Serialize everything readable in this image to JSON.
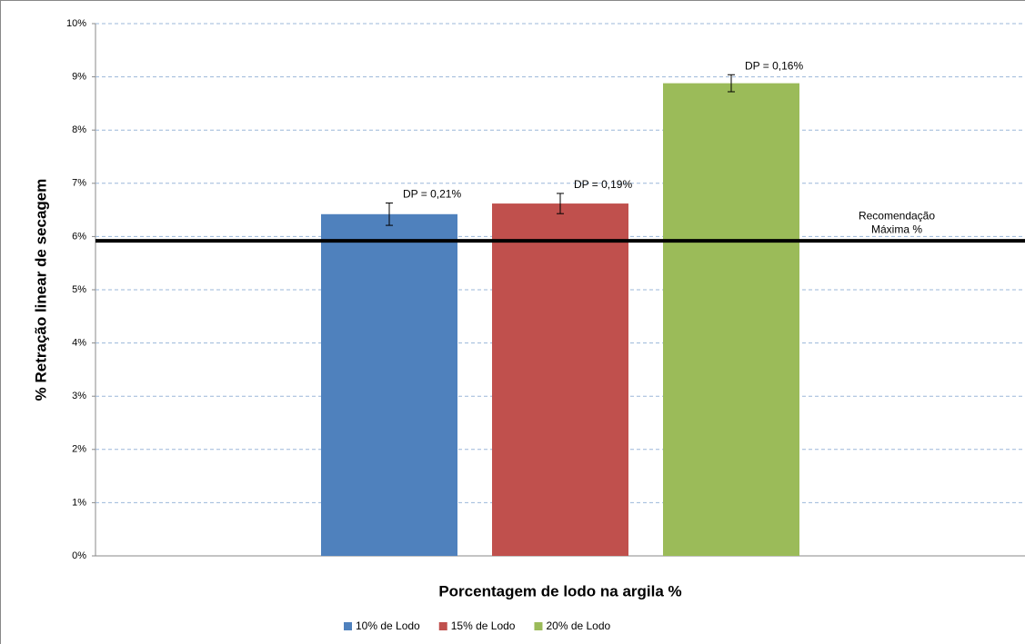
{
  "chart_data": {
    "type": "bar",
    "y_label": "% Retração linear de secagem",
    "x_label": "Porcentagem de lodo na argila %",
    "categories": [
      null
    ],
    "series": [
      {
        "name": "10% de Lodo",
        "color": "#4f81bd",
        "values": [
          6.42
        ],
        "errors": [
          0.21
        ],
        "error_labels": [
          "DP = 0,21%"
        ]
      },
      {
        "name": "15% de Lodo",
        "color": "#c0504d",
        "values": [
          6.62
        ],
        "errors": [
          0.19
        ],
        "error_labels": [
          "DP = 0,19%"
        ]
      },
      {
        "name": "20% de Lodo",
        "color": "#9bbb59",
        "values": [
          8.88
        ],
        "errors": [
          0.16
        ],
        "error_labels": [
          "DP = 0,16%"
        ]
      }
    ],
    "reference_line": {
      "value": 5.92,
      "color": "#000000",
      "label_lines": [
        "Recomendação",
        "Máxima %"
      ]
    },
    "ylim": [
      0,
      10
    ],
    "yticks": [
      {
        "value": 0,
        "label": "0%"
      },
      {
        "value": 1,
        "label": "1%"
      },
      {
        "value": 2,
        "label": "2%"
      },
      {
        "value": 3,
        "label": "3%"
      },
      {
        "value": 4,
        "label": "4%"
      },
      {
        "value": 5,
        "label": "5%"
      },
      {
        "value": 6,
        "label": "6%"
      },
      {
        "value": 7,
        "label": "7%"
      },
      {
        "value": 8,
        "label": "8%"
      },
      {
        "value": 9,
        "label": "9%"
      },
      {
        "value": 10,
        "label": "10%"
      }
    ],
    "grid": true,
    "legend": "bottom"
  }
}
